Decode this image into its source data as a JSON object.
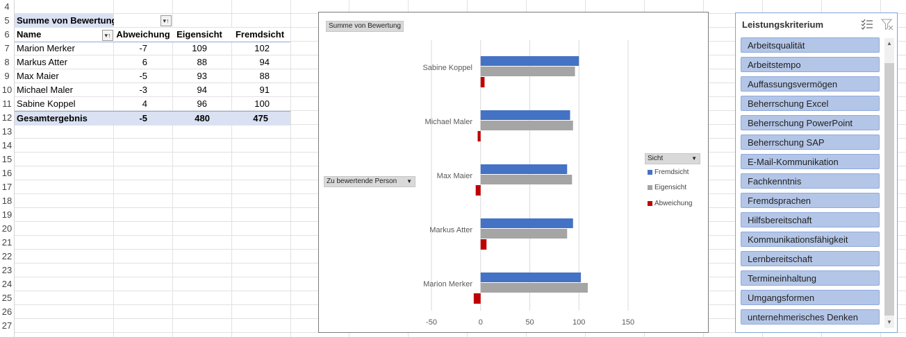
{
  "row_numbers": [
    "4",
    "5",
    "6",
    "7",
    "8",
    "9",
    "10",
    "11",
    "12",
    "13",
    "14",
    "15",
    "16",
    "17",
    "18",
    "19",
    "20",
    "21",
    "22",
    "23",
    "24",
    "25",
    "26",
    "27"
  ],
  "pivot": {
    "corner_label": "Summe von Bewertung",
    "headers": {
      "name": "Name",
      "abweichung": "Abweichung",
      "eigensicht": "Eigensicht",
      "fremdsicht": "Fremdsicht"
    },
    "rows": [
      {
        "name": "Marion Merker",
        "abweichung": "-7",
        "eigensicht": "109",
        "fremdsicht": "102"
      },
      {
        "name": "Markus Atter",
        "abweichung": "6",
        "eigensicht": "88",
        "fremdsicht": "94"
      },
      {
        "name": "Max Maier",
        "abweichung": "-5",
        "eigensicht": "93",
        "fremdsicht": "88"
      },
      {
        "name": "Michael Maler",
        "abweichung": "-3",
        "eigensicht": "94",
        "fremdsicht": "91"
      },
      {
        "name": "Sabine Koppel",
        "abweichung": "4",
        "eigensicht": "96",
        "fremdsicht": "100"
      }
    ],
    "total": {
      "name": "Gesamtergebnis",
      "abweichung": "-5",
      "eigensicht": "480",
      "fremdsicht": "475"
    }
  },
  "chart": {
    "value_button": "Summe  von Bewertung",
    "axis_button": "Zu bewertende Person",
    "legend_button": "Sicht",
    "legend": [
      "Fremdsicht",
      "Eigensicht",
      "Abweichung"
    ]
  },
  "chart_data": {
    "type": "bar",
    "orientation": "horizontal",
    "categories": [
      "Sabine Koppel",
      "Michael Maler",
      "Max Maier",
      "Markus Atter",
      "Marion Merker"
    ],
    "series": [
      {
        "name": "Fremdsicht",
        "color": "#4472c4",
        "values": [
          100,
          91,
          88,
          94,
          102
        ]
      },
      {
        "name": "Eigensicht",
        "color": "#a5a5a5",
        "values": [
          96,
          94,
          93,
          88,
          109
        ]
      },
      {
        "name": "Abweichung",
        "color": "#c00000",
        "values": [
          4,
          -3,
          -5,
          6,
          -7
        ]
      }
    ],
    "xlim": [
      -50,
      150
    ],
    "xticks": [
      "-50",
      "0",
      "50",
      "100",
      "150"
    ],
    "grid": true,
    "legend_position": "right"
  },
  "slicer": {
    "title": "Leistungskriterium",
    "items": [
      "Arbeitsqualität",
      "Arbeitstempo",
      "Auffassungsvermögen",
      "Beherrschung Excel",
      "Beherrschung PowerPoint",
      "Beherrschung SAP",
      "E-Mail-Kommunikation",
      "Fachkenntnis",
      "Fremdsprachen",
      "Hilfsbereitschaft",
      "Kommunikationsfähigkeit",
      "Lernbereitschaft",
      "Termineinhaltung",
      "Umgangsformen",
      "unternehmerisches Denken"
    ]
  }
}
